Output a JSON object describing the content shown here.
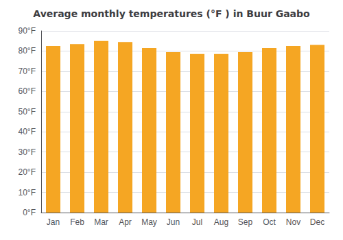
{
  "chart_data": {
    "type": "bar",
    "title": "Average monthly temperatures (°F ) in Buur Gaabo",
    "categories": [
      "Jan",
      "Feb",
      "Mar",
      "Apr",
      "May",
      "Jun",
      "Jul",
      "Aug",
      "Sep",
      "Oct",
      "Nov",
      "Dec"
    ],
    "values": [
      82.5,
      83.5,
      85.0,
      84.5,
      81.5,
      79.5,
      78.5,
      78.5,
      79.5,
      81.5,
      82.5,
      83.0
    ],
    "color": "#F5A623",
    "ylim": [
      0,
      90
    ],
    "yticks": [
      {
        "value": 0,
        "label": "0°F"
      },
      {
        "value": 10,
        "label": "10°F"
      },
      {
        "value": 20,
        "label": "20°F"
      },
      {
        "value": 30,
        "label": "30°F"
      },
      {
        "value": 40,
        "label": "40°F"
      },
      {
        "value": 50,
        "label": "50°F"
      },
      {
        "value": 60,
        "label": "60°F"
      },
      {
        "value": 70,
        "label": "70°F"
      },
      {
        "value": 80,
        "label": "80°F"
      },
      {
        "value": 90,
        "label": "90°F"
      }
    ],
    "grid": true
  }
}
